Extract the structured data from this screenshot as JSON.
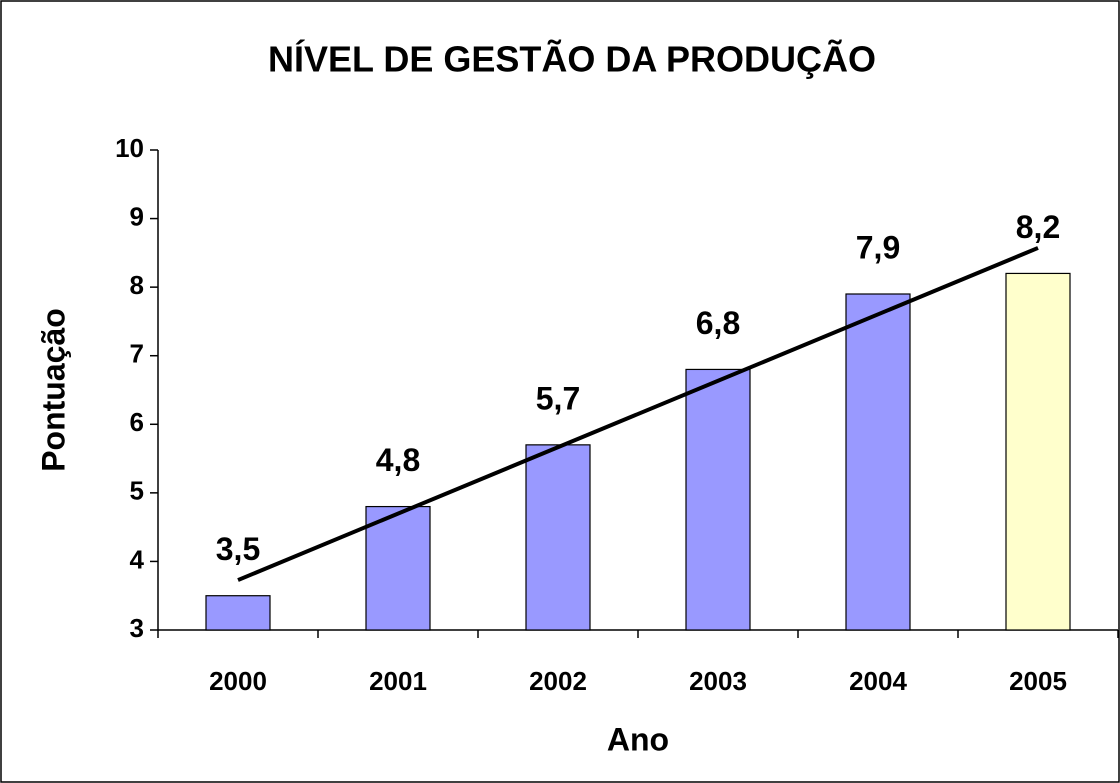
{
  "chart_data": {
    "type": "bar",
    "title": "NÍVEL DE GESTÃO DA PRODUÇÃO",
    "x_label": "Ano",
    "y_label": "Pontuação",
    "categories": [
      "2000",
      "2001",
      "2002",
      "2003",
      "2004",
      "2005"
    ],
    "values": [
      3.5,
      4.8,
      5.7,
      6.8,
      7.9,
      8.2
    ],
    "value_labels": [
      "3,5",
      "4,8",
      "5,7",
      "6,8",
      "7,9",
      "8,2"
    ],
    "colors": [
      "#9999ff",
      "#9999ff",
      "#9999ff",
      "#9999ff",
      "#9999ff",
      "#ffffcc"
    ],
    "ylim": [
      3,
      10
    ],
    "yticks": [
      3,
      4,
      5,
      6,
      7,
      8,
      9,
      10
    ],
    "trendline": "linear",
    "trendline_color": "#000000"
  }
}
